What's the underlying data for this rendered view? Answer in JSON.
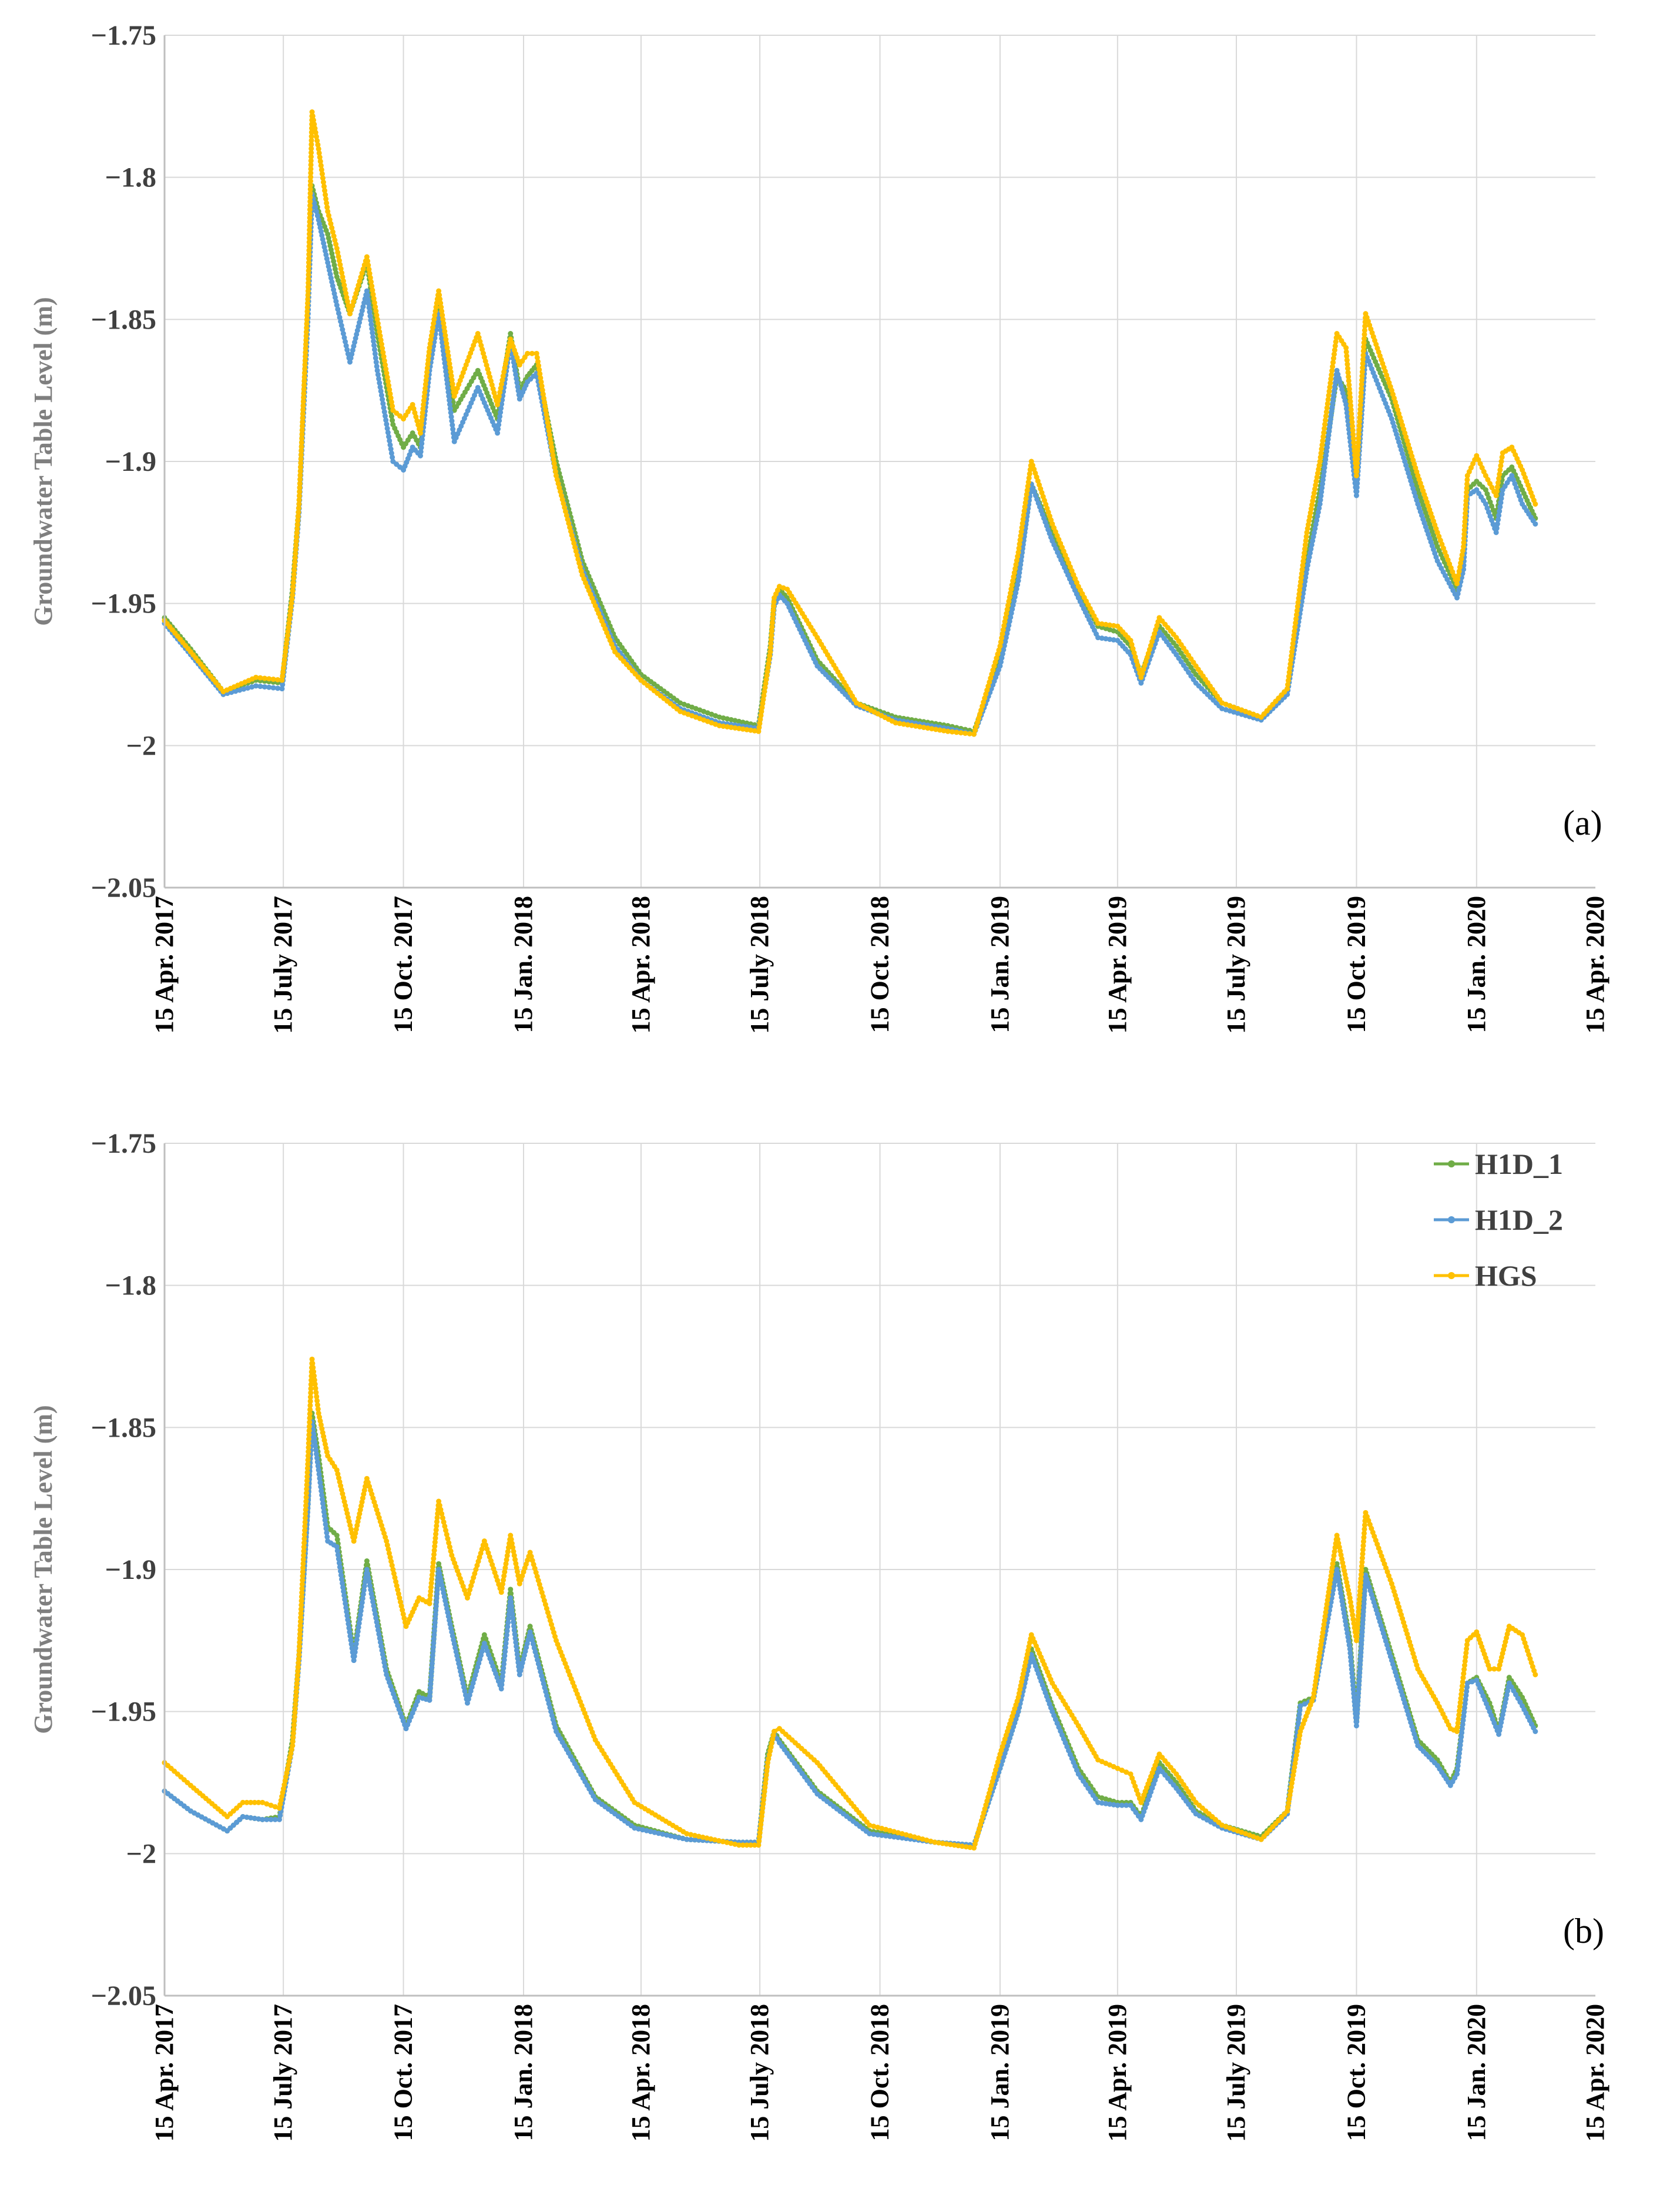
{
  "chart_data": [
    {
      "type": "line",
      "panel_label": "(a)",
      "title": "",
      "ylabel": "Groundwater Table Level (m)",
      "xlabel": "",
      "ylim": [
        -2.05,
        -1.75
      ],
      "yticks": [
        -1.75,
        -1.8,
        -1.85,
        -1.9,
        -1.95,
        -2,
        -2.05
      ],
      "ytick_labels": [
        "−1.75",
        "−1.8",
        "−1.85",
        "−1.9",
        "−1.95",
        "−2",
        "−2.05"
      ],
      "xlim": [
        0,
        1096
      ],
      "xticks": [
        0,
        91,
        183,
        275,
        365,
        456,
        548,
        640,
        730,
        821,
        913,
        1005,
        1096
      ],
      "xtick_labels": [
        "15 Apr. 2017",
        "15 July 2017",
        "15 Oct. 2017",
        "15 Jan. 2018",
        "15 Apr. 2018",
        "15 July 2018",
        "15 Oct. 2018",
        "15 Jan. 2019",
        "15 Apr. 2019",
        "15 July 2019",
        "15 Oct. 2019",
        "15 Jan. 2020",
        "15 Apr. 2020"
      ],
      "x_unit": "days since 15 Apr. 2017",
      "grid": true,
      "legend": false,
      "series": [
        {
          "name": "H1D_1",
          "color": "#70ad47",
          "x": [
            0,
            20,
            45,
            70,
            90,
            98,
            103,
            110,
            113,
            118,
            125,
            132,
            142,
            155,
            163,
            175,
            183,
            190,
            196,
            203,
            210,
            222,
            240,
            255,
            265,
            272,
            278,
            285,
            300,
            320,
            345,
            365,
            395,
            425,
            455,
            464,
            467,
            471,
            477,
            500,
            530,
            560,
            600,
            620,
            640,
            654,
            664,
            680,
            700,
            715,
            730,
            740,
            748,
            762,
            775,
            790,
            810,
            840,
            860,
            875,
            885,
            898,
            905,
            913,
            920,
            940,
            960,
            975,
            990,
            995,
            998,
            1005,
            1012,
            1020,
            1025,
            1032,
            1040,
            1050
          ],
          "y": [
            -1.955,
            -1.966,
            -1.981,
            -1.977,
            -1.978,
            -1.945,
            -1.915,
            -1.845,
            -1.803,
            -1.812,
            -1.82,
            -1.835,
            -1.848,
            -1.83,
            -1.855,
            -1.887,
            -1.895,
            -1.89,
            -1.895,
            -1.862,
            -1.845,
            -1.882,
            -1.868,
            -1.885,
            -1.855,
            -1.875,
            -1.87,
            -1.866,
            -1.9,
            -1.935,
            -1.962,
            -1.975,
            -1.985,
            -1.99,
            -1.993,
            -1.965,
            -1.949,
            -1.945,
            -1.948,
            -1.97,
            -1.985,
            -1.99,
            -1.993,
            -1.995,
            -1.97,
            -1.94,
            -1.908,
            -1.925,
            -1.945,
            -1.958,
            -1.96,
            -1.965,
            -1.975,
            -1.958,
            -1.965,
            -1.975,
            -1.985,
            -1.99,
            -1.98,
            -1.935,
            -1.91,
            -1.87,
            -1.875,
            -1.905,
            -1.857,
            -1.878,
            -1.91,
            -1.93,
            -1.945,
            -1.935,
            -1.91,
            -1.907,
            -1.91,
            -1.92,
            -1.905,
            -1.902,
            -1.91,
            -1.92
          ]
        },
        {
          "name": "H1D_2",
          "color": "#5b9bd5",
          "x": [
            0,
            20,
            45,
            70,
            90,
            98,
            103,
            110,
            113,
            118,
            125,
            132,
            142,
            155,
            163,
            175,
            183,
            190,
            196,
            203,
            210,
            222,
            240,
            255,
            265,
            272,
            278,
            285,
            300,
            320,
            345,
            365,
            395,
            425,
            455,
            464,
            467,
            471,
            477,
            500,
            530,
            560,
            600,
            620,
            640,
            654,
            664,
            680,
            700,
            715,
            730,
            740,
            748,
            762,
            775,
            790,
            810,
            840,
            860,
            875,
            885,
            898,
            905,
            913,
            920,
            940,
            960,
            975,
            990,
            995,
            998,
            1005,
            1012,
            1020,
            1025,
            1032,
            1040,
            1050
          ],
          "y": [
            -1.957,
            -1.968,
            -1.982,
            -1.979,
            -1.98,
            -1.948,
            -1.918,
            -1.848,
            -1.806,
            -1.815,
            -1.83,
            -1.845,
            -1.865,
            -1.84,
            -1.868,
            -1.9,
            -1.903,
            -1.895,
            -1.898,
            -1.868,
            -1.848,
            -1.893,
            -1.874,
            -1.89,
            -1.858,
            -1.878,
            -1.872,
            -1.869,
            -1.905,
            -1.938,
            -1.965,
            -1.977,
            -1.987,
            -1.992,
            -1.994,
            -1.968,
            -1.951,
            -1.947,
            -1.95,
            -1.972,
            -1.986,
            -1.991,
            -1.994,
            -1.996,
            -1.972,
            -1.942,
            -1.908,
            -1.928,
            -1.948,
            -1.962,
            -1.963,
            -1.968,
            -1.978,
            -1.96,
            -1.968,
            -1.978,
            -1.987,
            -1.991,
            -1.982,
            -1.938,
            -1.915,
            -1.868,
            -1.88,
            -1.912,
            -1.862,
            -1.885,
            -1.915,
            -1.935,
            -1.948,
            -1.938,
            -1.912,
            -1.91,
            -1.915,
            -1.925,
            -1.91,
            -1.905,
            -1.915,
            -1.922
          ]
        },
        {
          "name": "HGS",
          "color": "#ffc000",
          "x": [
            0,
            20,
            45,
            70,
            90,
            98,
            103,
            110,
            113,
            118,
            125,
            132,
            142,
            155,
            163,
            175,
            183,
            190,
            196,
            203,
            210,
            222,
            240,
            255,
            265,
            272,
            278,
            285,
            300,
            320,
            345,
            365,
            395,
            425,
            455,
            464,
            467,
            471,
            477,
            500,
            530,
            560,
            600,
            620,
            640,
            654,
            664,
            680,
            700,
            715,
            730,
            740,
            748,
            762,
            775,
            790,
            810,
            840,
            860,
            875,
            885,
            898,
            905,
            913,
            920,
            940,
            960,
            975,
            990,
            995,
            998,
            1005,
            1012,
            1020,
            1025,
            1032,
            1040,
            1050
          ],
          "y": [
            -1.956,
            -1.967,
            -1.981,
            -1.976,
            -1.977,
            -1.947,
            -1.915,
            -1.84,
            -1.777,
            -1.79,
            -1.812,
            -1.825,
            -1.848,
            -1.828,
            -1.85,
            -1.882,
            -1.885,
            -1.88,
            -1.89,
            -1.86,
            -1.84,
            -1.877,
            -1.855,
            -1.88,
            -1.857,
            -1.866,
            -1.862,
            -1.862,
            -1.905,
            -1.94,
            -1.967,
            -1.977,
            -1.988,
            -1.993,
            -1.995,
            -1.967,
            -1.948,
            -1.944,
            -1.945,
            -1.962,
            -1.985,
            -1.992,
            -1.995,
            -1.996,
            -1.965,
            -1.932,
            -1.9,
            -1.922,
            -1.944,
            -1.957,
            -1.958,
            -1.963,
            -1.976,
            -1.955,
            -1.962,
            -1.972,
            -1.985,
            -1.99,
            -1.98,
            -1.925,
            -1.9,
            -1.855,
            -1.86,
            -1.905,
            -1.848,
            -1.875,
            -1.905,
            -1.925,
            -1.943,
            -1.93,
            -1.905,
            -1.898,
            -1.905,
            -1.912,
            -1.897,
            -1.895,
            -1.903,
            -1.915
          ]
        }
      ]
    },
    {
      "type": "line",
      "panel_label": "(b)",
      "title": "",
      "ylabel": "Groundwater Table Level (m)",
      "xlabel": "",
      "ylim": [
        -2.05,
        -1.75
      ],
      "yticks": [
        -1.75,
        -1.8,
        -1.85,
        -1.9,
        -1.95,
        -2,
        -2.05
      ],
      "ytick_labels": [
        "−1.75",
        "−1.8",
        "−1.85",
        "−1.9",
        "−1.95",
        "−2",
        "−2.05"
      ],
      "xlim": [
        0,
        1096
      ],
      "xticks": [
        0,
        91,
        183,
        275,
        365,
        456,
        548,
        640,
        730,
        821,
        913,
        1005,
        1096
      ],
      "xtick_labels": [
        "15 Apr. 2017",
        "15 July 2017",
        "15 Oct. 2017",
        "15 Jan. 2018",
        "15 Apr. 2018",
        "15 July 2018",
        "15 Oct. 2018",
        "15 Jan. 2019",
        "15 Apr. 2019",
        "15 July 2019",
        "15 Oct. 2019",
        "15 Jan. 2020",
        "15 Apr. 2020"
      ],
      "x_unit": "days since 15 Apr. 2017",
      "grid": true,
      "legend": true,
      "legend_position": "top-right",
      "series": [
        {
          "name": "H1D_1",
          "color": "#70ad47",
          "x": [
            0,
            20,
            48,
            60,
            75,
            88,
            98,
            103,
            110,
            113,
            118,
            125,
            132,
            145,
            155,
            170,
            185,
            195,
            203,
            210,
            220,
            232,
            245,
            258,
            265,
            272,
            280,
            300,
            330,
            360,
            400,
            440,
            455,
            462,
            467,
            471,
            500,
            540,
            590,
            620,
            640,
            654,
            664,
            680,
            700,
            715,
            730,
            740,
            748,
            762,
            775,
            790,
            810,
            840,
            860,
            870,
            880,
            898,
            908,
            913,
            920,
            940,
            960,
            975,
            985,
            990,
            998,
            1005,
            1015,
            1022,
            1030,
            1040,
            1050
          ],
          "y": [
            -1.978,
            -1.985,
            -1.992,
            -1.987,
            -1.988,
            -1.987,
            -1.96,
            -1.93,
            -1.875,
            -1.845,
            -1.86,
            -1.885,
            -1.888,
            -1.93,
            -1.897,
            -1.935,
            -1.955,
            -1.943,
            -1.945,
            -1.898,
            -1.92,
            -1.945,
            -1.923,
            -1.94,
            -1.907,
            -1.935,
            -1.92,
            -1.955,
            -1.98,
            -1.99,
            -1.995,
            -1.996,
            -1.996,
            -1.965,
            -1.957,
            -1.96,
            -1.978,
            -1.992,
            -1.996,
            -1.997,
            -1.97,
            -1.95,
            -1.928,
            -1.948,
            -1.97,
            -1.98,
            -1.982,
            -1.982,
            -1.987,
            -1.968,
            -1.975,
            -1.985,
            -1.99,
            -1.994,
            -1.985,
            -1.947,
            -1.945,
            -1.898,
            -1.925,
            -1.953,
            -1.9,
            -1.93,
            -1.96,
            -1.967,
            -1.975,
            -1.97,
            -1.94,
            -1.938,
            -1.947,
            -1.957,
            -1.938,
            -1.945,
            -1.955
          ]
        },
        {
          "name": "H1D_2",
          "color": "#5b9bd5",
          "x": [
            0,
            20,
            48,
            60,
            75,
            88,
            98,
            103,
            110,
            113,
            118,
            125,
            132,
            145,
            155,
            170,
            185,
            195,
            203,
            210,
            220,
            232,
            245,
            258,
            265,
            272,
            280,
            300,
            330,
            360,
            400,
            440,
            455,
            462,
            467,
            471,
            500,
            540,
            590,
            620,
            640,
            654,
            664,
            680,
            700,
            715,
            730,
            740,
            748,
            762,
            775,
            790,
            810,
            840,
            860,
            870,
            880,
            898,
            908,
            913,
            920,
            940,
            960,
            975,
            985,
            990,
            998,
            1005,
            1015,
            1022,
            1030,
            1040,
            1050
          ],
          "y": [
            -1.978,
            -1.985,
            -1.992,
            -1.987,
            -1.988,
            -1.988,
            -1.962,
            -1.932,
            -1.877,
            -1.848,
            -1.865,
            -1.89,
            -1.892,
            -1.932,
            -1.9,
            -1.937,
            -1.956,
            -1.945,
            -1.946,
            -1.9,
            -1.922,
            -1.947,
            -1.926,
            -1.942,
            -1.91,
            -1.937,
            -1.922,
            -1.957,
            -1.981,
            -1.991,
            -1.995,
            -1.996,
            -1.996,
            -1.967,
            -1.958,
            -1.961,
            -1.979,
            -1.993,
            -1.996,
            -1.997,
            -1.97,
            -1.95,
            -1.93,
            -1.95,
            -1.972,
            -1.982,
            -1.983,
            -1.983,
            -1.988,
            -1.97,
            -1.977,
            -1.986,
            -1.991,
            -1.995,
            -1.986,
            -1.948,
            -1.946,
            -1.9,
            -1.928,
            -1.955,
            -1.902,
            -1.932,
            -1.962,
            -1.969,
            -1.976,
            -1.972,
            -1.94,
            -1.939,
            -1.95,
            -1.958,
            -1.94,
            -1.948,
            -1.957
          ]
        },
        {
          "name": "HGS",
          "color": "#ffc000",
          "x": [
            0,
            20,
            48,
            60,
            75,
            88,
            98,
            103,
            110,
            113,
            118,
            125,
            132,
            145,
            155,
            170,
            185,
            195,
            203,
            210,
            220,
            232,
            245,
            258,
            265,
            272,
            280,
            300,
            330,
            360,
            400,
            440,
            455,
            462,
            467,
            471,
            500,
            540,
            590,
            620,
            640,
            654,
            664,
            680,
            700,
            715,
            730,
            740,
            748,
            762,
            775,
            790,
            810,
            840,
            860,
            870,
            880,
            898,
            908,
            913,
            920,
            940,
            960,
            975,
            985,
            990,
            998,
            1005,
            1015,
            1022,
            1030,
            1040,
            1050
          ],
          "y": [
            -1.968,
            -1.976,
            -1.987,
            -1.982,
            -1.982,
            -1.984,
            -1.962,
            -1.93,
            -1.86,
            -1.826,
            -1.845,
            -1.86,
            -1.865,
            -1.89,
            -1.868,
            -1.89,
            -1.92,
            -1.91,
            -1.912,
            -1.876,
            -1.895,
            -1.91,
            -1.89,
            -1.908,
            -1.888,
            -1.905,
            -1.894,
            -1.925,
            -1.96,
            -1.982,
            -1.993,
            -1.997,
            -1.997,
            -1.968,
            -1.957,
            -1.956,
            -1.968,
            -1.99,
            -1.996,
            -1.998,
            -1.965,
            -1.945,
            -1.923,
            -1.94,
            -1.955,
            -1.967,
            -1.97,
            -1.972,
            -1.982,
            -1.965,
            -1.972,
            -1.982,
            -1.99,
            -1.995,
            -1.985,
            -1.957,
            -1.945,
            -1.888,
            -1.91,
            -1.925,
            -1.88,
            -1.905,
            -1.935,
            -1.947,
            -1.956,
            -1.957,
            -1.925,
            -1.922,
            -1.935,
            -1.935,
            -1.92,
            -1.923,
            -1.937
          ]
        }
      ]
    }
  ]
}
